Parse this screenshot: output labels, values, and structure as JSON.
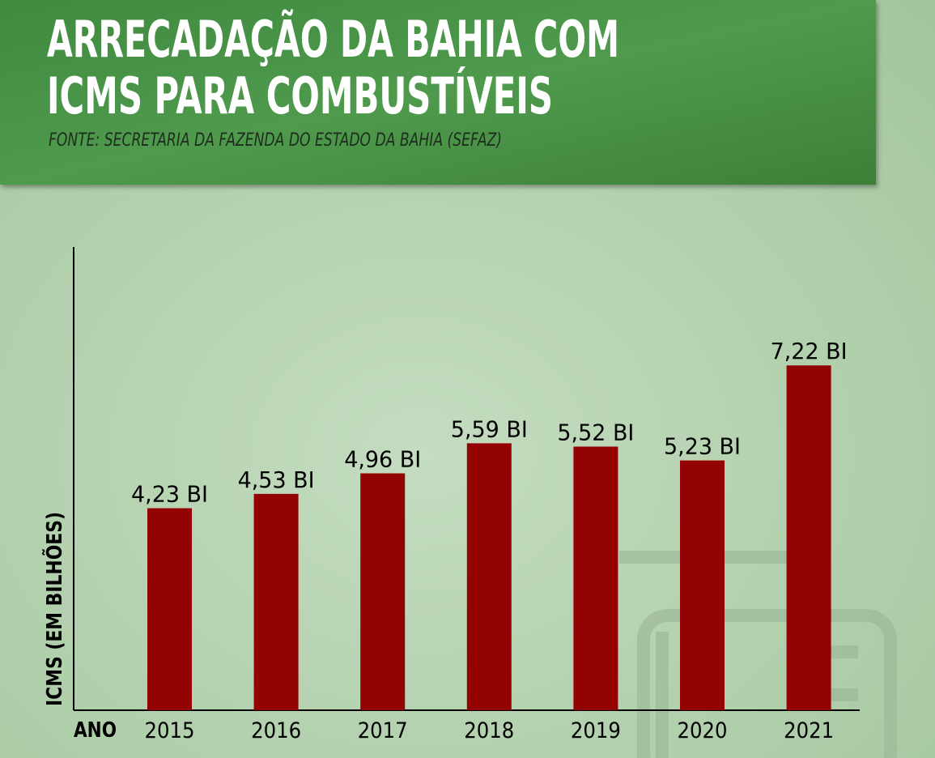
{
  "chart_data": {
    "type": "bar",
    "title": [
      "ARRECADAÇÃO DA BAHIA COM",
      "ICMS PARA COMBUSTÍVEIS"
    ],
    "subtitle": "FONTE: SECRETARIA DA FAZENDA DO ESTADO DA BAHIA (SEFAZ)",
    "x_label": "ANO",
    "y_label": "ICMS (EM BILHÕES)",
    "categories": [
      "2015",
      "2016",
      "2017",
      "2018",
      "2019",
      "2020",
      "2021"
    ],
    "values": [
      4.23,
      4.53,
      4.96,
      5.59,
      5.52,
      5.23,
      7.22
    ],
    "value_labels": [
      "4,23 BI",
      "4,53 BI",
      "4,96 BI",
      "5,59 BI",
      "5,52 BI",
      "5,23 BI",
      "7,22 BI"
    ],
    "color": "#940303",
    "ylim": [
      0,
      9.7
    ]
  }
}
